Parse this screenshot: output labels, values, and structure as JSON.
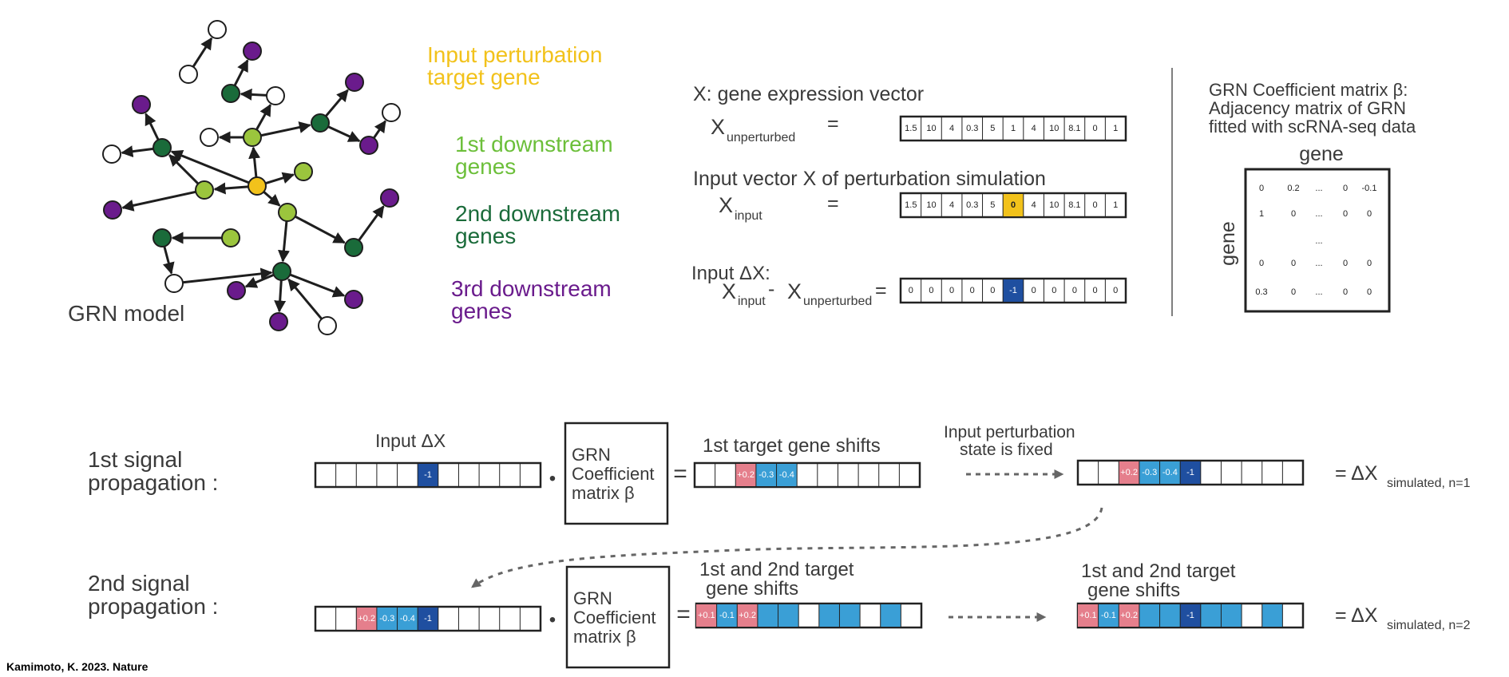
{
  "colors": {
    "target": "#f2c21b",
    "first": "#9bc53d",
    "second": "#1a6b3a",
    "third": "#6a1b8c",
    "empty": "#ffffff",
    "pink": "#e57f8c",
    "light_blue": "#3a9fd6",
    "dark_blue": "#1f4fa0",
    "highlight": "#f2c21b",
    "text": "#3a3a3a"
  },
  "network": {
    "label": "GRN model"
  },
  "legend": {
    "target_line1": "Input perturbation",
    "target_line2": "target gene",
    "first_line1": "1st downstream",
    "first_line2": "genes",
    "second_line1": "2nd downstream",
    "second_line2": "genes",
    "third_line1": "3rd downstream",
    "third_line2": "genes"
  },
  "vectors": {
    "expression_title": "X: gene expression vector",
    "x_unperturbed_main": "X",
    "x_unperturbed_sub": "unperturbed",
    "equals": "=",
    "unperturbed_values": [
      "1.5",
      "10",
      "4",
      "0.3",
      "5",
      "1",
      "4",
      "10",
      "8.1",
      "0",
      "1"
    ],
    "input_title": "Input vector X of perturbation simulation",
    "x_input_main": "X",
    "x_input_sub": "input",
    "input_values": [
      "1.5",
      "10",
      "4",
      "0.3",
      "5",
      "0",
      "4",
      "10",
      "8.1",
      "0",
      "1"
    ],
    "delta_title": "Input ΔX:",
    "delta_x1_main": "X",
    "delta_x1_sub": "input",
    "delta_minus": "-",
    "delta_x2_main": "X",
    "delta_x2_sub": "unperturbed",
    "delta_values": [
      "0",
      "0",
      "0",
      "0",
      "0",
      "-1",
      "0",
      "0",
      "0",
      "0",
      "0"
    ]
  },
  "matrix": {
    "title_line1": "GRN Coefficient matrix β:",
    "title_line2": "Adjacency matrix of GRN",
    "title_line3": "fitted with scRNA-seq data",
    "col_label": "gene",
    "row_label": "gene",
    "rows": [
      [
        "0",
        "0.2",
        "...",
        "0",
        "-0.1"
      ],
      [
        "1",
        "0",
        "...",
        "0",
        "0"
      ],
      [
        "",
        "",
        "...",
        "",
        ""
      ],
      [
        "0",
        "0",
        "...",
        "0",
        "0"
      ],
      [
        "0.3",
        "0",
        "...",
        "0",
        "0"
      ]
    ]
  },
  "propagation": {
    "first_label_line1": "1st signal",
    "first_label_line2": "propagation :",
    "input_dx": "Input ΔX",
    "first_input_cells": [
      "",
      "",
      "",
      "",
      "",
      "-1",
      "",
      "",
      "",
      "",
      ""
    ],
    "dot": "•",
    "coef_line1": "GRN",
    "coef_line2": "Coefficient",
    "coef_line3": "matrix β",
    "eq": "=",
    "first_shift_title": "1st target gene shifts",
    "first_shift_cells": [
      "",
      "",
      "+0.2",
      "-0.3",
      "-0.4",
      "",
      "",
      "",
      "",
      "",
      ""
    ],
    "fixed_line1": "Input perturbation",
    "fixed_line2": "state is fixed",
    "first_result_cells": [
      "",
      "",
      "+0.2",
      "-0.3",
      "-0.4",
      "-1",
      "",
      "",
      "",
      "",
      ""
    ],
    "result1_main": "= ΔX",
    "result1_sub": "simulated, n=1",
    "second_label_line1": "2nd signal",
    "second_label_line2": "propagation :",
    "second_input_cells": [
      "",
      "",
      "+0.2",
      "-0.3",
      "-0.4",
      "-1",
      "",
      "",
      "",
      "",
      ""
    ],
    "second_shift_title_line1": "1st and 2nd target",
    "second_shift_title_line2": "gene shifts",
    "second_shift_cells": [
      "+0.1",
      "-0.1",
      "+0.2",
      "",
      "",
      "",
      "",
      "",
      "",
      "",
      ""
    ],
    "second_result_title_line1": "1st and 2nd target",
    "second_result_title_line2": "gene shifts",
    "second_result_cells": [
      "+0.1",
      "-0.1",
      "+0.2",
      "",
      "",
      "-1",
      "",
      "",
      "",
      "",
      ""
    ],
    "result2_main": "= ΔX",
    "result2_sub": "simulated, n=2"
  },
  "credit": "Kamimoto, K. 2023. Nature"
}
